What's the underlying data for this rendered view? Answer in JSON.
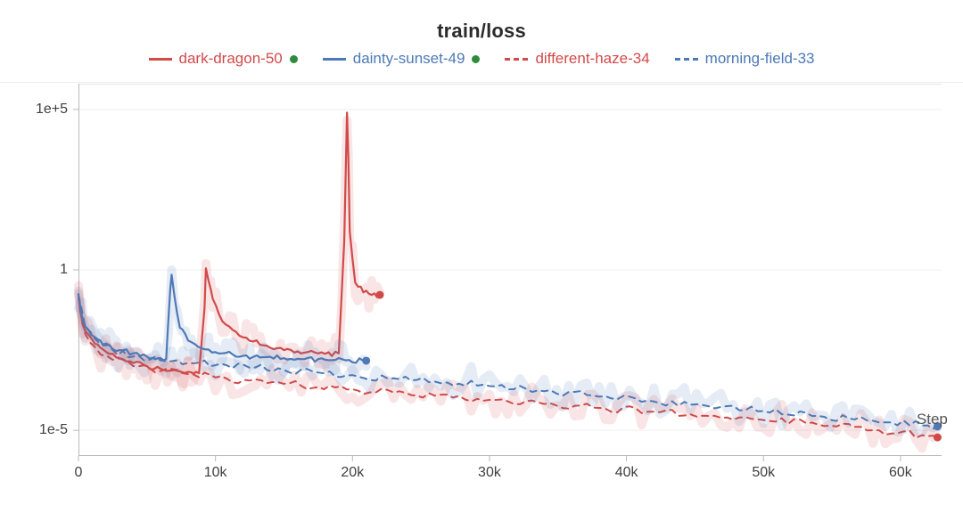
{
  "chart": {
    "type": "line",
    "title": "train/loss",
    "title_fontsize": 22,
    "title_fontweight": 700,
    "label_fontsize": 16,
    "background_color": "#ffffff",
    "grid_color": "#efefef",
    "axis_color": "#b9b9b9",
    "line_width_solid": 2.2,
    "line_width_dashed": 2.0,
    "dash_pattern": "7 6",
    "shadow_opacity": 0.14,
    "shadow_width": 10,
    "legend_status_dot_color": "#2e8b3d",
    "xaxis": {
      "title": "Step",
      "lim": [
        0,
        63000
      ],
      "ticks": [
        0,
        10000,
        20000,
        30000,
        40000,
        50000,
        60000
      ],
      "tick_labels": [
        "0",
        "10k",
        "20k",
        "30k",
        "40k",
        "50k",
        "60k"
      ],
      "scale": "linear"
    },
    "yaxis": {
      "lim_log10": [
        -5.8,
        5.8
      ],
      "scale": "log",
      "ticks_log10": [
        -5,
        0,
        5
      ],
      "tick_labels": [
        "1e-5",
        "1",
        "1e+5"
      ]
    },
    "series": [
      {
        "name": "dark-dragon-50",
        "color": "#d14a4a",
        "style": "solid",
        "status_dot": true,
        "endpoint_marker": true,
        "x": [
          0,
          300,
          700,
          1200,
          2000,
          3000,
          4000,
          5000,
          6000,
          7000,
          8000,
          8800,
          9200,
          9300,
          9500,
          9800,
          10500,
          12000,
          13500,
          15000,
          16500,
          18000,
          19000,
          19400,
          19600,
          19700,
          19800,
          20200,
          20800,
          21400,
          22000
        ],
        "ylg": [
          -0.8,
          -1.7,
          -2.0,
          -2.3,
          -2.55,
          -2.75,
          -2.9,
          -3.0,
          -3.08,
          -3.12,
          -3.18,
          -3.22,
          -1.2,
          0.05,
          -0.35,
          -0.9,
          -1.6,
          -2.1,
          -2.35,
          -2.5,
          -2.58,
          -2.62,
          -2.6,
          0.9,
          4.9,
          3.5,
          1.2,
          -0.4,
          -0.7,
          -0.78,
          -0.78
        ]
      },
      {
        "name": "dainty-sunset-49",
        "color": "#4d79b6",
        "style": "solid",
        "status_dot": true,
        "endpoint_marker": true,
        "x": [
          0,
          300,
          700,
          1200,
          2000,
          3000,
          4000,
          5000,
          5800,
          6400,
          6700,
          6800,
          7000,
          7400,
          8000,
          9000,
          10500,
          12000,
          13500,
          15000,
          16500,
          18000,
          19500,
          21000
        ],
        "ylg": [
          -0.75,
          -1.55,
          -1.85,
          -2.1,
          -2.35,
          -2.5,
          -2.6,
          -2.7,
          -2.75,
          -2.78,
          -0.6,
          -0.15,
          -0.8,
          -1.8,
          -2.2,
          -2.45,
          -2.6,
          -2.68,
          -2.72,
          -2.75,
          -2.78,
          -2.8,
          -2.82,
          -2.83
        ]
      },
      {
        "name": "different-haze-34",
        "color": "#d14a4a",
        "style": "dashed",
        "status_dot": false,
        "endpoint_marker": true,
        "x": [
          0,
          500,
          1200,
          2500,
          4000,
          6000,
          8000,
          10000,
          12500,
          15000,
          17500,
          20000,
          23000,
          26000,
          30000,
          34000,
          38000,
          42000,
          46000,
          50000,
          54000,
          58000,
          62000,
          62700
        ],
        "ylg": [
          -0.9,
          -2.0,
          -2.4,
          -2.8,
          -3.0,
          -3.15,
          -3.25,
          -3.35,
          -3.45,
          -3.55,
          -3.65,
          -3.72,
          -3.82,
          -3.92,
          -4.05,
          -4.18,
          -4.3,
          -4.42,
          -4.55,
          -4.68,
          -4.82,
          -5.0,
          -5.18,
          -5.22
        ]
      },
      {
        "name": "morning-field-33",
        "color": "#4d79b6",
        "style": "dashed",
        "status_dot": false,
        "endpoint_marker": true,
        "x": [
          0,
          500,
          1200,
          2500,
          4000,
          6000,
          8000,
          10000,
          12500,
          15000,
          17500,
          20000,
          23000,
          26000,
          30000,
          34000,
          38000,
          42000,
          46000,
          50000,
          54000,
          58000,
          62000,
          62700
        ],
        "ylg": [
          -0.8,
          -1.8,
          -2.15,
          -2.5,
          -2.7,
          -2.82,
          -2.9,
          -2.97,
          -3.05,
          -3.12,
          -3.2,
          -3.28,
          -3.38,
          -3.48,
          -3.62,
          -3.78,
          -3.95,
          -4.1,
          -4.25,
          -4.4,
          -4.55,
          -4.7,
          -4.85,
          -4.88
        ]
      }
    ]
  }
}
